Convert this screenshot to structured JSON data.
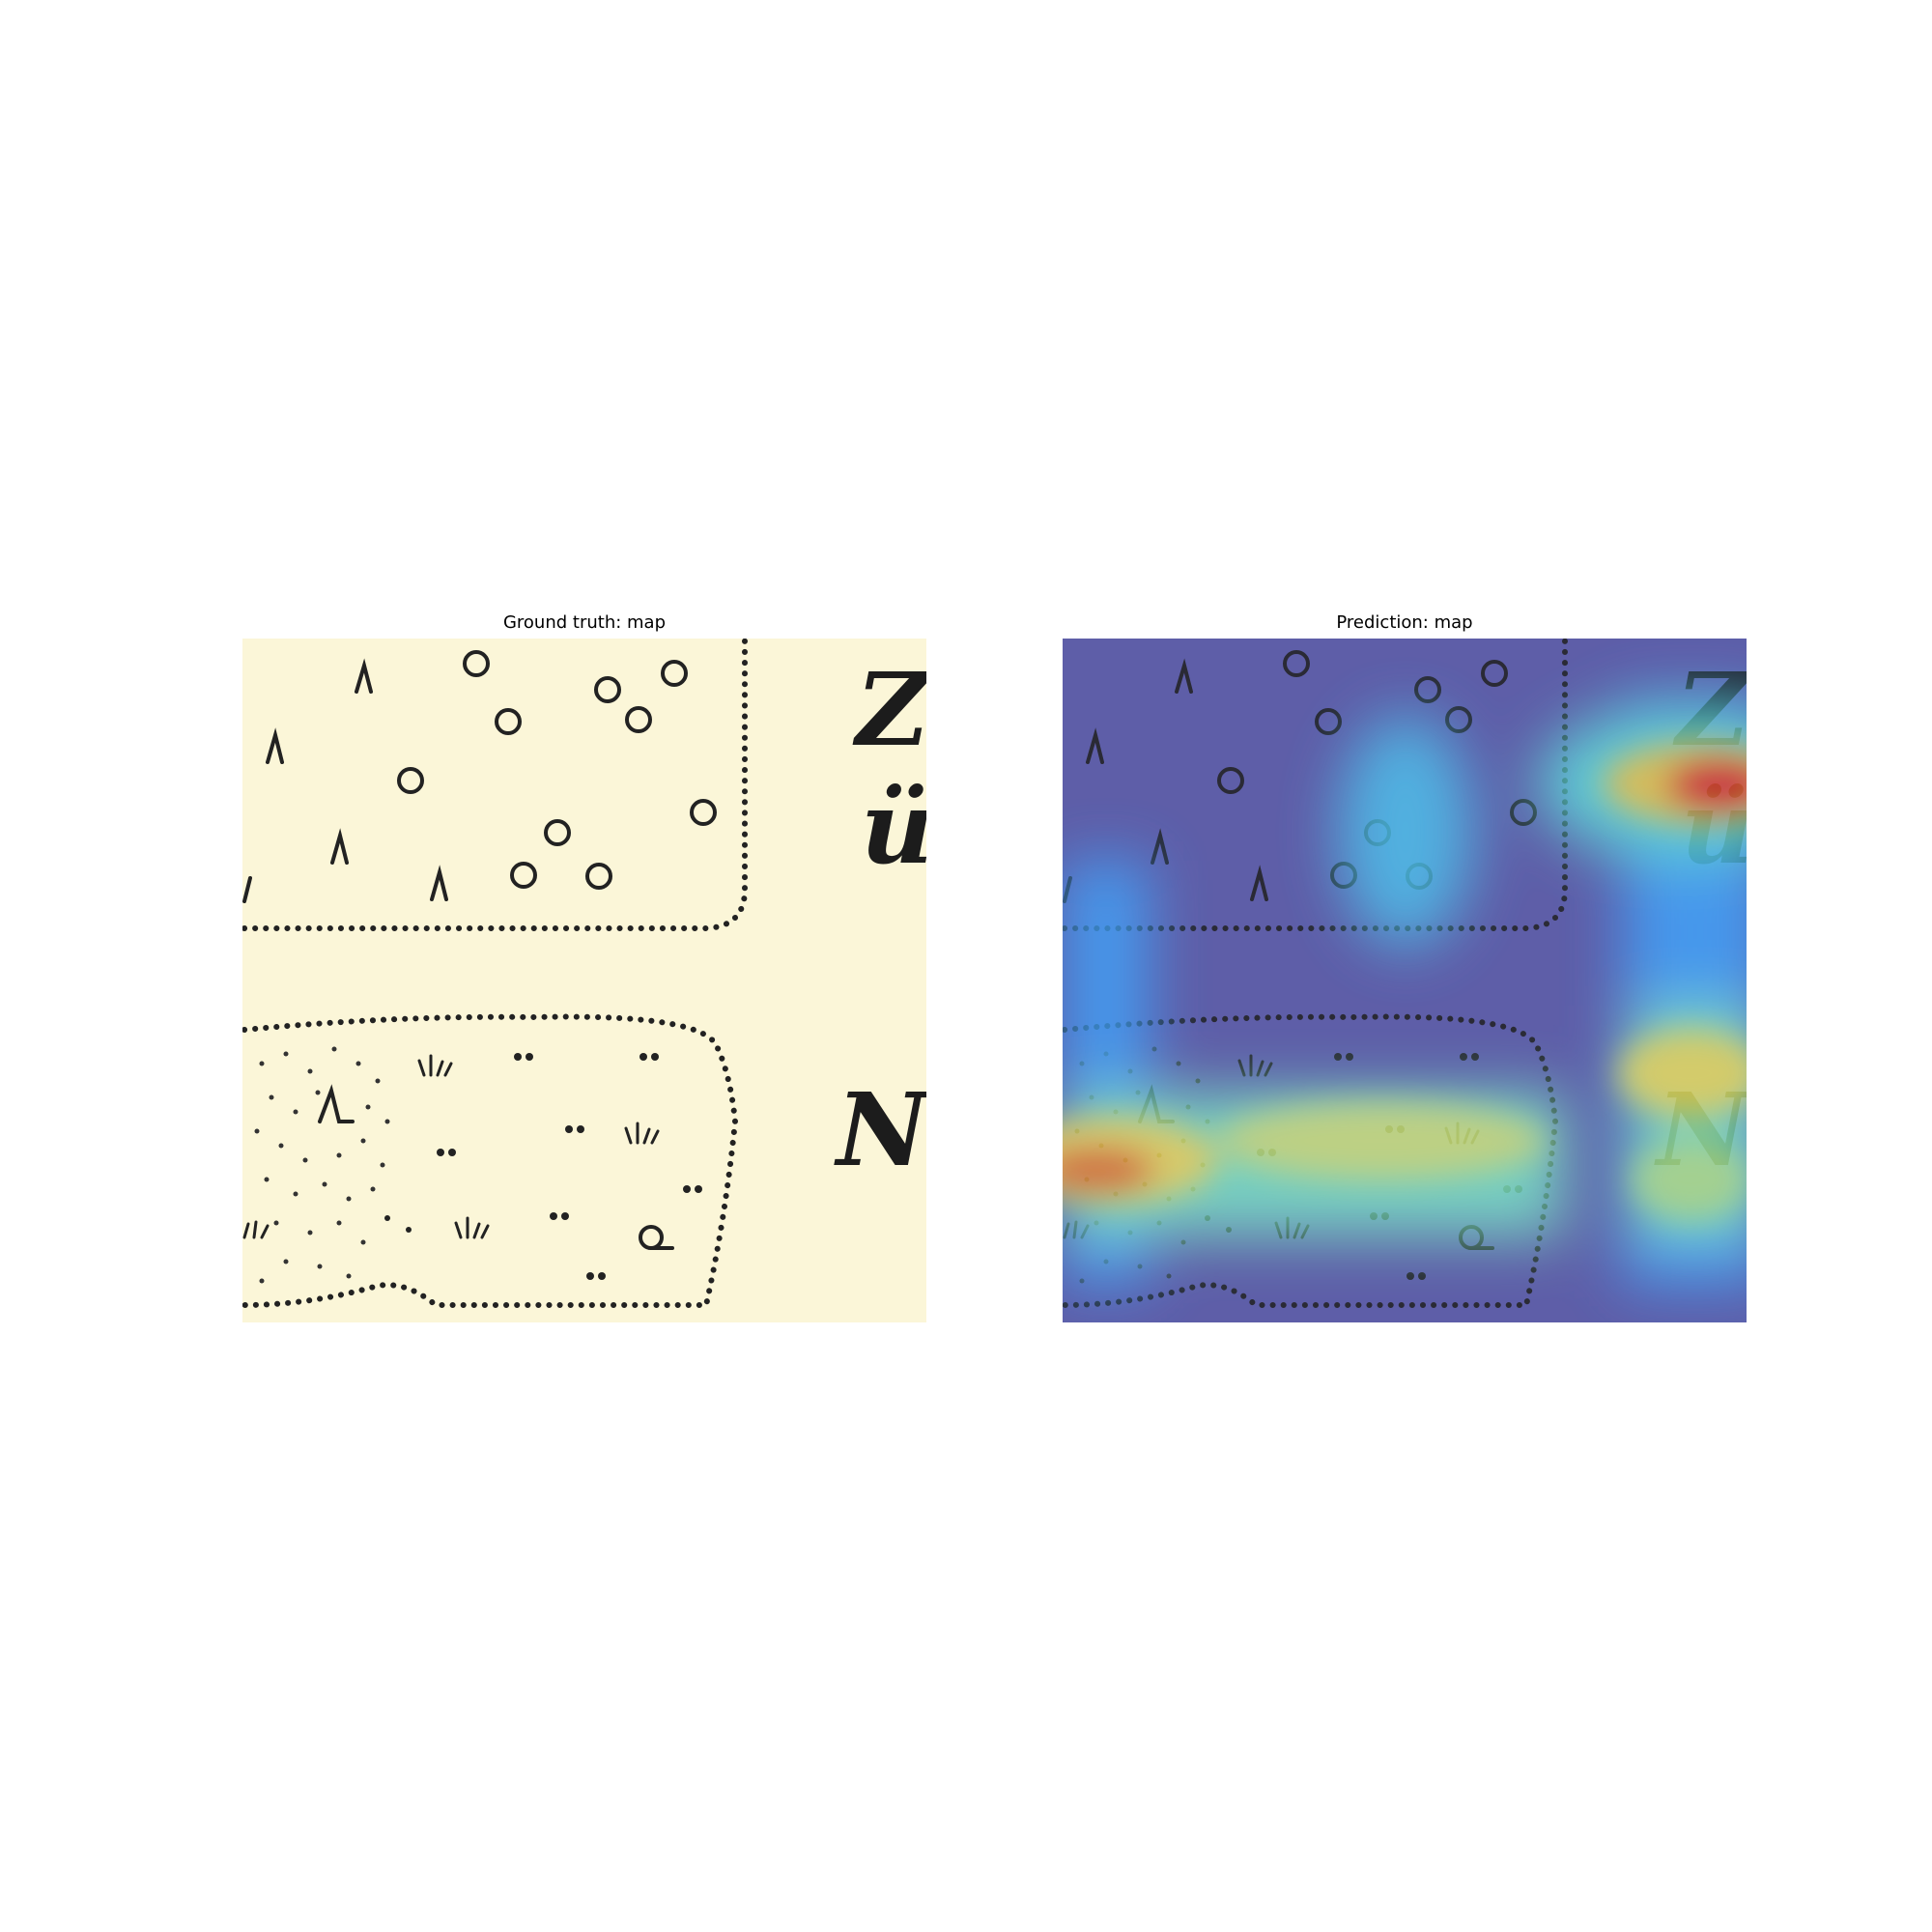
{
  "figure": {
    "left_title": "Ground truth: map",
    "right_title": "Prediction: map"
  },
  "map_text": {
    "top_label_1": "Z",
    "top_label_2": "ü",
    "bottom_label": "N"
  },
  "colors": {
    "paper": "#fbf6d8",
    "ink": "#222222",
    "heatmap_base": "#5e5ea8",
    "heatmap_hot": "#e8282a",
    "heatmap_warm": "#f8e85a",
    "heatmap_mid": "#6ef0d0"
  }
}
